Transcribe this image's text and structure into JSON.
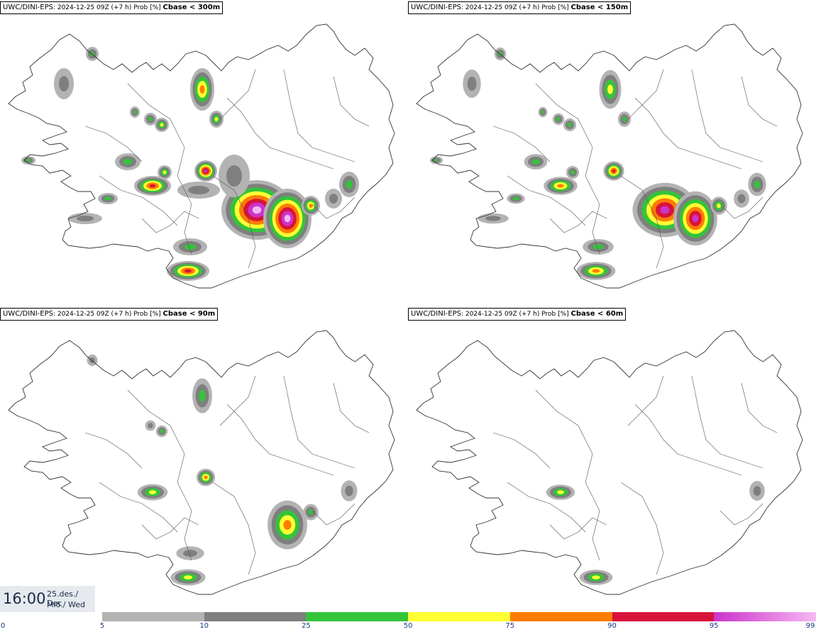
{
  "panels": [
    {
      "model": "UWC/DINI-EPS",
      "info": "2024-12-25 09Z (+7 h) Prob [%]",
      "threshold": "Cbase < 300m",
      "intensity": 1.0
    },
    {
      "model": "UWC/DINI-EPS",
      "info": "2024-12-25 09Z (+7 h) Prob [%]",
      "threshold": "Cbase < 150m",
      "intensity": 0.8
    },
    {
      "model": "UWC/DINI-EPS",
      "info": "2024-12-25 09Z (+7 h) Prob [%]",
      "threshold": "Cbase < 90m",
      "intensity": 0.6
    },
    {
      "model": "UWC/DINI-EPS",
      "info": "2024-12-25 09Z (+7 h) Prob [%]",
      "threshold": "Cbase < 60m",
      "intensity": 0.5
    }
  ],
  "valid_time": {
    "time": "16:00",
    "date_line1": "25.des./ Dec",
    "date_line2": "Mið./ Wed"
  },
  "colorbar": {
    "start_label": "0",
    "bins": [
      {
        "from": 5,
        "to": 10,
        "color": "#b3b3b3"
      },
      {
        "from": 10,
        "to": 25,
        "color": "#7f7f7f"
      },
      {
        "from": 25,
        "to": 50,
        "color": "#33c43a"
      },
      {
        "from": 50,
        "to": 75,
        "color": "#ffff33"
      },
      {
        "from": 75,
        "to": 90,
        "color": "#ff7c00"
      },
      {
        "from": 90,
        "to": 95,
        "color": "#d8133a"
      },
      {
        "from": 95,
        "to": 99,
        "color": "#cc33cc"
      }
    ],
    "end_color": "#f5b8f2",
    "labels": [
      "5",
      "10",
      "25",
      "50",
      "75",
      "90",
      "95",
      "99"
    ]
  }
}
